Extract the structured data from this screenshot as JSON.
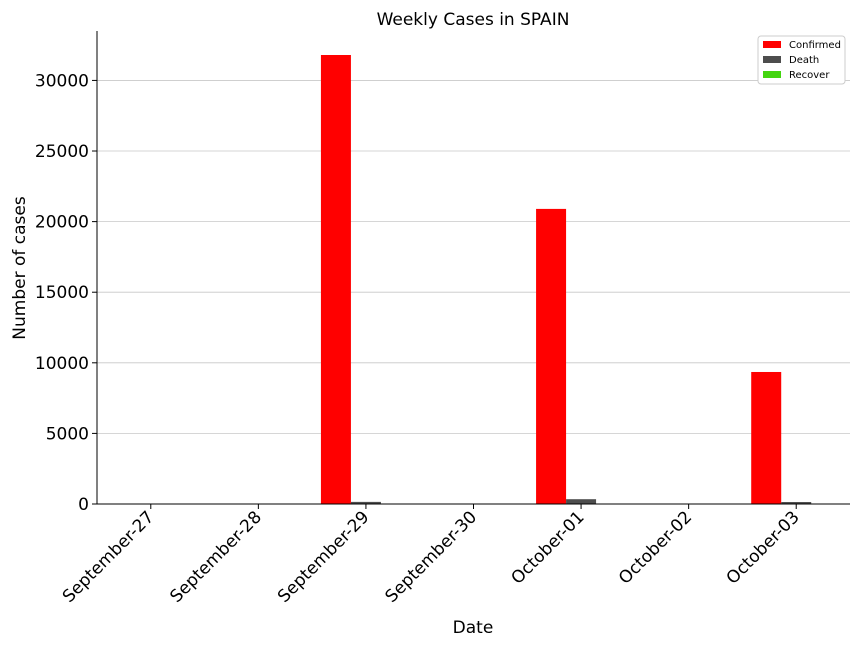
{
  "chart_data": {
    "type": "bar",
    "title": "Weekly Cases in SPAIN",
    "xlabel": "Date",
    "ylabel": "Number of cases",
    "categories": [
      "September-27",
      "September-28",
      "September-29",
      "September-30",
      "October-01",
      "October-02",
      "October-03"
    ],
    "series": [
      {
        "name": "Confirmed",
        "color": "#ff0000",
        "values": [
          0,
          0,
          31800,
          0,
          20900,
          0,
          9350
        ]
      },
      {
        "name": "Death",
        "color": "#4d4d4d",
        "values": [
          0,
          0,
          150,
          0,
          340,
          0,
          140
        ]
      },
      {
        "name": "Recover",
        "color": "#43d50f",
        "values": [
          0,
          0,
          0,
          0,
          0,
          0,
          0
        ]
      }
    ],
    "ylim": [
      0,
      33500
    ],
    "yticks": [
      0,
      5000,
      10000,
      15000,
      20000,
      25000,
      30000
    ],
    "grid": "y",
    "legend_position": "top-right"
  }
}
